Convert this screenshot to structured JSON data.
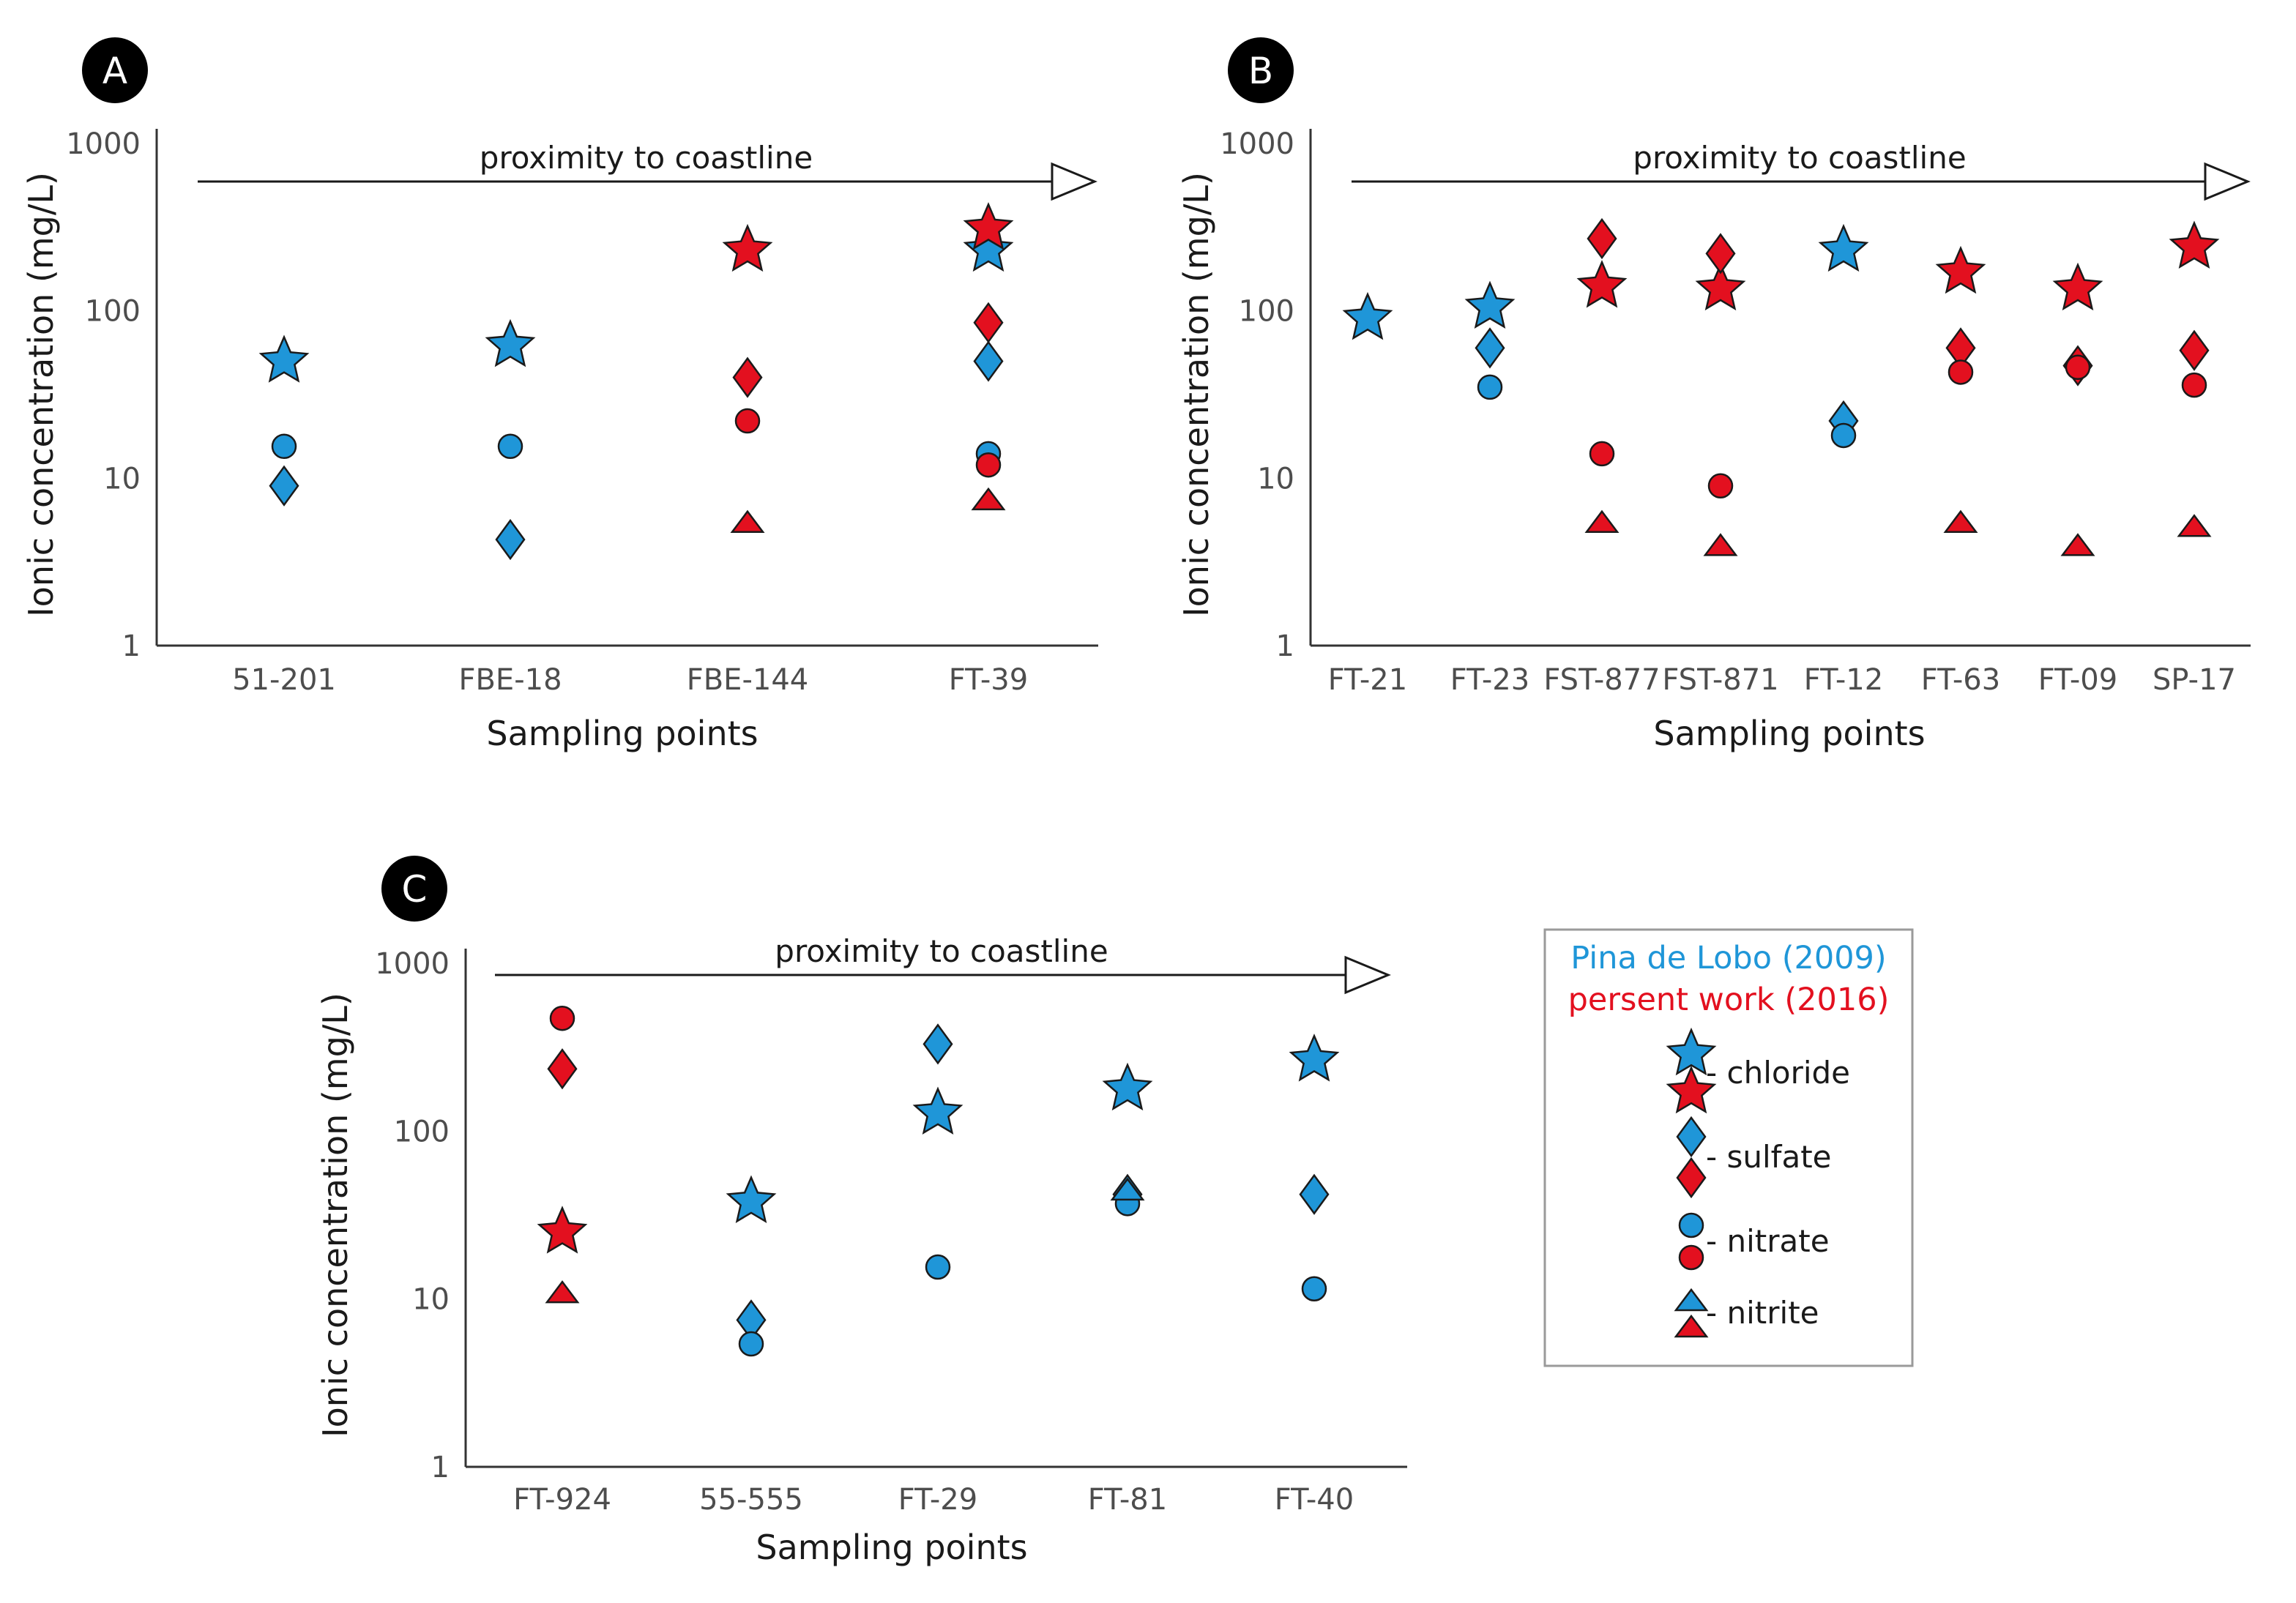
{
  "colors": {
    "pina_de_lobo": "#1f96d8",
    "present_work": "#e3101f",
    "axis": "#333333",
    "text": "#1a1a1a"
  },
  "chart_data": [
    {
      "type": "scatter",
      "label": "A",
      "yscale": "log",
      "ylim": [
        1,
        1000
      ],
      "yticks": [
        "1000",
        "100",
        "10",
        "1"
      ],
      "ylabel": "Ionic concentration (mg/L)",
      "xlabel": "Sampling points",
      "arrow_label": "proximity to coastline",
      "categories": [
        "51-201",
        "FBE-18",
        "FBE-144",
        "FT-39"
      ],
      "series": [
        {
          "name": "chloride",
          "source": "Pina de Lobo (2009)",
          "values": [
            50,
            62,
            null,
            230
          ]
        },
        {
          "name": "sulfate",
          "source": "Pina de Lobo (2009)",
          "values": [
            9,
            4.3,
            null,
            50
          ]
        },
        {
          "name": "nitrate",
          "source": "Pina de Lobo (2009)",
          "values": [
            15.5,
            15.5,
            null,
            14
          ]
        },
        {
          "name": "chloride",
          "source": "persent work (2016)",
          "values": [
            null,
            null,
            230,
            310
          ]
        },
        {
          "name": "sulfate",
          "source": "persent work (2016)",
          "values": [
            null,
            null,
            40,
            85
          ]
        },
        {
          "name": "nitrate",
          "source": "persent work (2016)",
          "values": [
            null,
            null,
            22,
            12
          ]
        },
        {
          "name": "nitrite",
          "source": "persent work (2016)",
          "values": [
            null,
            null,
            5.5,
            7.5
          ]
        }
      ]
    },
    {
      "type": "scatter",
      "label": "B",
      "yscale": "log",
      "ylim": [
        1,
        1000
      ],
      "yticks": [
        "1000",
        "100",
        "10",
        "1"
      ],
      "ylabel": "Ionic concentration (mg/L)",
      "xlabel": "Sampling points",
      "arrow_label": "proximity to coastline",
      "categories": [
        "FT-21",
        "FT-23",
        "FST-877",
        "FST-871",
        "FT-12",
        "FT-63",
        "FT-09",
        "SP-17"
      ],
      "series": [
        {
          "name": "chloride",
          "source": "Pina de Lobo (2009)",
          "values": [
            90,
            105,
            null,
            null,
            230,
            null,
            null,
            null
          ]
        },
        {
          "name": "sulfate",
          "source": "Pina de Lobo (2009)",
          "values": [
            null,
            60,
            null,
            null,
            22,
            null,
            null,
            null
          ]
        },
        {
          "name": "nitrate",
          "source": "Pina de Lobo (2009)",
          "values": [
            null,
            35,
            null,
            null,
            18,
            null,
            null,
            null
          ]
        },
        {
          "name": "chloride",
          "source": "persent work (2016)",
          "values": [
            null,
            null,
            140,
            135,
            null,
            170,
            135,
            240
          ]
        },
        {
          "name": "sulfate",
          "source": "persent work (2016)",
          "values": [
            null,
            null,
            270,
            220,
            null,
            60,
            47,
            58
          ]
        },
        {
          "name": "nitrate",
          "source": "persent work (2016)",
          "values": [
            null,
            null,
            14,
            9,
            null,
            43,
            46,
            36
          ]
        },
        {
          "name": "nitrite",
          "source": "persent work (2016)",
          "values": [
            null,
            null,
            5.5,
            4,
            null,
            5.5,
            4,
            5.2
          ]
        }
      ]
    },
    {
      "type": "scatter",
      "label": "C",
      "yscale": "log",
      "ylim": [
        1,
        1000
      ],
      "yticks": [
        "1000",
        "100",
        "10",
        "1"
      ],
      "ylabel": "Ionic concentration (mg/L)",
      "xlabel": "Sampling points",
      "arrow_label": "proximity to coastline",
      "categories": [
        "FT-924",
        "55-555",
        "FT-29",
        "FT-81",
        "FT-40"
      ],
      "series": [
        {
          "name": "chloride",
          "source": "Pina de Lobo (2009)",
          "values": [
            null,
            38,
            128,
            178,
            265
          ]
        },
        {
          "name": "sulfate",
          "source": "Pina de Lobo (2009)",
          "values": [
            null,
            7.5,
            330,
            42,
            42
          ]
        },
        {
          "name": "nitrate",
          "source": "Pina de Lobo (2009)",
          "values": [
            null,
            5.4,
            15.5,
            37,
            11.5
          ]
        },
        {
          "name": "nitrite",
          "source": "Pina de Lobo (2009)",
          "values": [
            null,
            null,
            null,
            45,
            null
          ]
        },
        {
          "name": "chloride",
          "source": "persent work (2016)",
          "values": [
            25,
            null,
            null,
            null,
            null
          ]
        },
        {
          "name": "sulfate",
          "source": "persent work (2016)",
          "values": [
            235,
            null,
            null,
            null,
            null
          ]
        },
        {
          "name": "nitrate",
          "source": "persent work (2016)",
          "values": [
            470,
            null,
            null,
            null,
            null
          ]
        },
        {
          "name": "nitrite",
          "source": "persent work (2016)",
          "values": [
            11,
            null,
            null,
            null,
            null
          ]
        }
      ]
    }
  ],
  "legend": {
    "sources": [
      {
        "key": "pina_de_lobo",
        "label": "Pina de Lobo (2009)"
      },
      {
        "key": "present_work",
        "label": "persent work (2016)"
      }
    ],
    "items": [
      {
        "shape": "star",
        "label": "- chloride"
      },
      {
        "shape": "diamond",
        "label": "- sulfate"
      },
      {
        "shape": "circle",
        "label": "- nitrate"
      },
      {
        "shape": "triangle",
        "label": "- nitrite"
      }
    ]
  }
}
